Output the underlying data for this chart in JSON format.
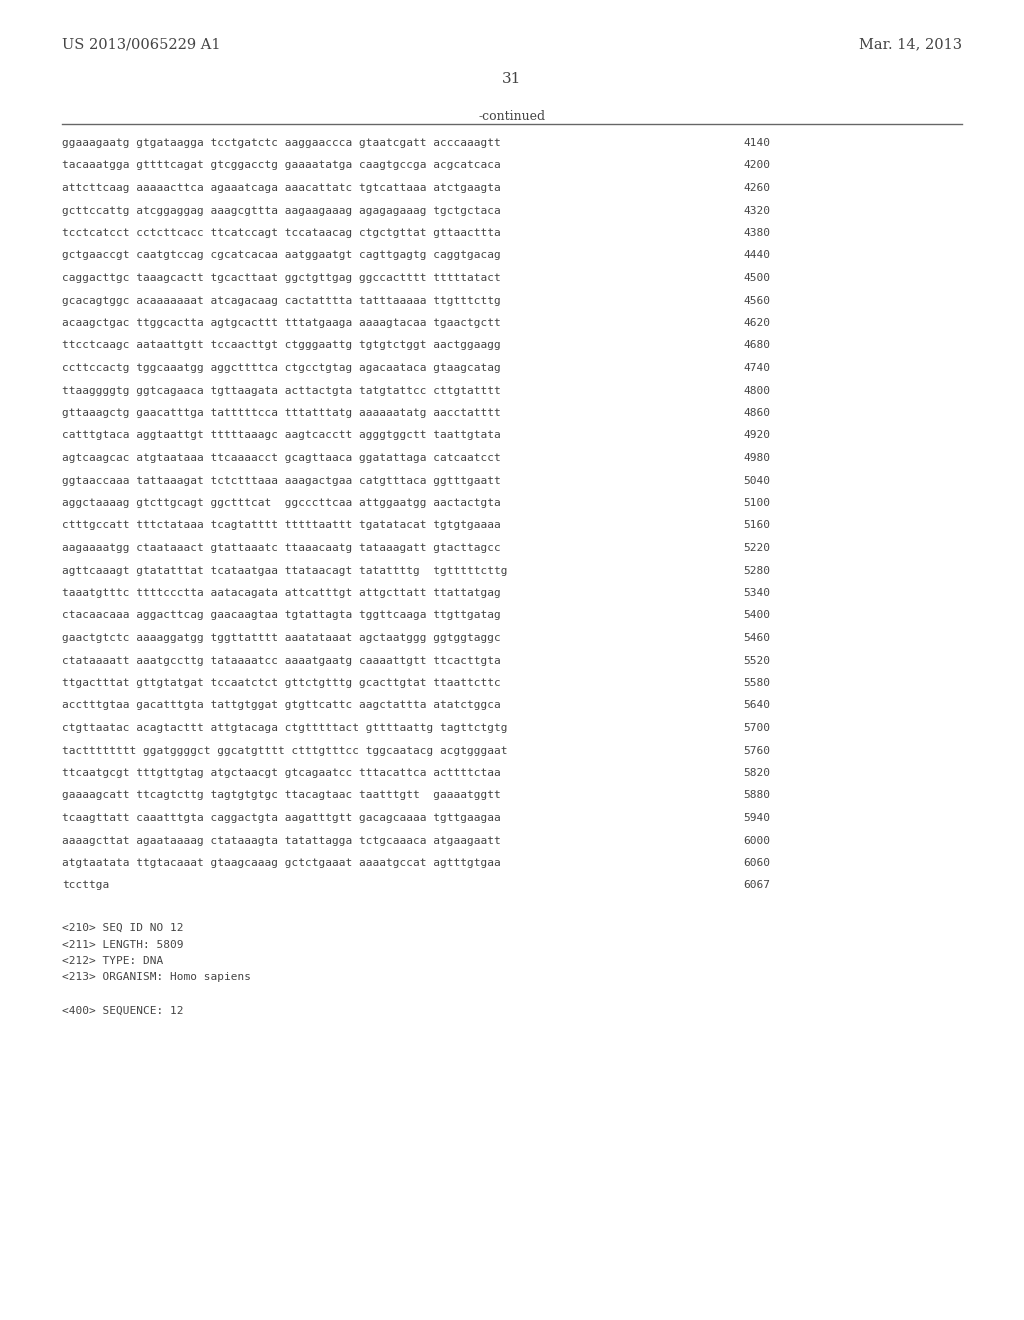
{
  "header_left": "US 2013/0065229 A1",
  "header_right": "Mar. 14, 2013",
  "page_number": "31",
  "continued_label": "-continued",
  "background_color": "#ffffff",
  "text_color": "#444444",
  "sequence_lines": [
    [
      "ggaaagaatg gtgataagga tcctgatctc aaggaaccca gtaatcgatt acccaaagtt",
      "4140"
    ],
    [
      "tacaaatgga gttttcagat gtcggacctg gaaaatatga caagtgccga acgcatcaca",
      "4200"
    ],
    [
      "attcttcaag aaaaacttca agaaatcaga aaacattatc tgtcattaaa atctgaagta",
      "4260"
    ],
    [
      "gcttccattg atcggaggag aaagcgttta aagaagaaag agagagaaag tgctgctaca",
      "4320"
    ],
    [
      "tcctcatcct cctcttcacc ttcatccagt tccataacag ctgctgttat gttaacttta",
      "4380"
    ],
    [
      "gctgaaccgt caatgtccag cgcatcacaa aatggaatgt cagttgagtg caggtgacag",
      "4440"
    ],
    [
      "caggacttgc taaagcactt tgcacttaat ggctgttgag ggccactttt tttttatact",
      "4500"
    ],
    [
      "gcacagtggc acaaaaaaat atcagacaag cactatttta tatttaaaaa ttgtttcttg",
      "4560"
    ],
    [
      "acaagctgac ttggcactta agtgcacttt tttatgaaga aaaagtacaa tgaactgctt",
      "4620"
    ],
    [
      "ttcctcaagc aataattgtt tccaacttgt ctgggaattg tgtgtctggt aactggaagg",
      "4680"
    ],
    [
      "ccttccactg tggcaaatgg aggcttttca ctgcctgtag agacaataca gtaagcatag",
      "4740"
    ],
    [
      "ttaaggggtg ggtcagaaca tgttaagata acttactgta tatgtattcc cttgtatttt",
      "4800"
    ],
    [
      "gttaaagctg gaacatttga tatttttcca tttatttatg aaaaaatatg aacctatttt",
      "4860"
    ],
    [
      "catttgtaca aggtaattgt tttttaaagc aagtcacctt agggtggctt taattgtata",
      "4920"
    ],
    [
      "agtcaagcac atgtaataaa ttcaaaacct gcagttaaca ggatattaga catcaatcct",
      "4980"
    ],
    [
      "ggtaaccaaa tattaaagat tctctttaaa aaagactgaa catgtttaca ggtttgaatt",
      "5040"
    ],
    [
      "aggctaaaag gtcttgcagt ggctttcat  ggcccttcaa attggaatgg aactactgta",
      "5100"
    ],
    [
      "ctttgccatt tttctataaa tcagtatttt tttttaattt tgatatacat tgtgtgaaaa",
      "5160"
    ],
    [
      "aagaaaatgg ctaataaact gtattaaatc ttaaacaatg tataaagatt gtacttagcc",
      "5220"
    ],
    [
      "agttcaaagt gtatatttat tcataatgaa ttataacagt tatattttg  tgtttttcttg",
      "5280"
    ],
    [
      "taaatgtttc ttttccctta aatacagata attcatttgt attgcttatt ttattatgag",
      "5340"
    ],
    [
      "ctacaacaaa aggacttcag gaacaagtaa tgtattagta tggttcaaga ttgttgatag",
      "5400"
    ],
    [
      "gaactgtctc aaaaggatgg tggttatttt aaatataaat agctaatggg ggtggtaggc",
      "5460"
    ],
    [
      "ctataaaatt aaatgccttg tataaaatcc aaaatgaatg caaaattgtt ttcacttgta",
      "5520"
    ],
    [
      "ttgactttat gttgtatgat tccaatctct gttctgtttg gcacttgtat ttaattcttc",
      "5580"
    ],
    [
      "acctttgtaa gacatttgta tattgtggat gtgttcattc aagctattta atatctggca",
      "5640"
    ],
    [
      "ctgttaatac acagtacttt attgtacaga ctgtttttact gttttaattg tagttctgtg",
      "5700"
    ],
    [
      "tactttttttt ggatggggct ggcatgtttt ctttgtttcc tggcaatacg acgtgggaat",
      "5760"
    ],
    [
      "ttcaatgcgt tttgttgtag atgctaacgt gtcagaatcc tttacattca acttttctaa",
      "5820"
    ],
    [
      "gaaaagcatt ttcagtcttg tagtgtgtgc ttacagtaac taatttgtt  gaaaatggtt",
      "5880"
    ],
    [
      "tcaagttatt caaatttgta caggactgta aagatttgtt gacagcaaaa tgttgaagaa",
      "5940"
    ],
    [
      "aaaagcttat agaataaaag ctataaagta tatattagga tctgcaaaca atgaagaatt",
      "6000"
    ],
    [
      "atgtaatata ttgtacaaat gtaagcaaag gctctgaaat aaaatgccat agtttgtgaa",
      "6060"
    ],
    [
      "tccttga",
      "6067"
    ]
  ],
  "footer_lines": [
    "<210> SEQ ID NO 12",
    "<211> LENGTH: 5809",
    "<212> TYPE: DNA",
    "<213> ORGANISM: Homo sapiens",
    "",
    "<400> SEQUENCE: 12"
  ]
}
